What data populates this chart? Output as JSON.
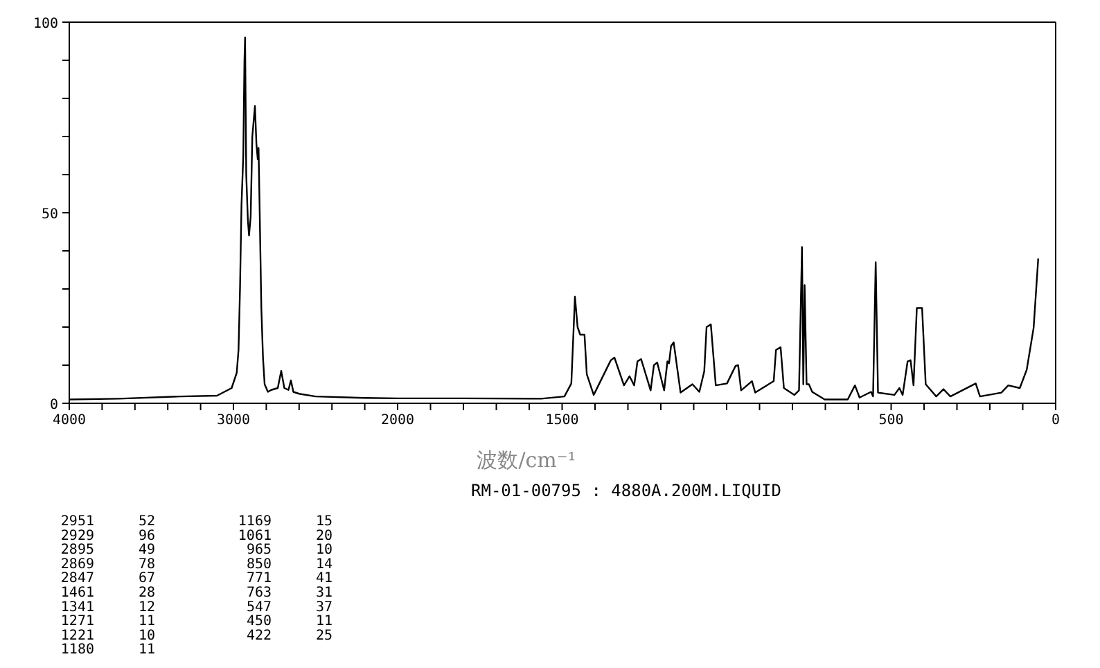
{
  "chart_data": [
    {
      "type": "line",
      "grid": false,
      "marker": "none",
      "line_style": "solid",
      "xlim": [
        4000,
        2000
      ],
      "ylim": [
        0,
        100
      ],
      "xticks": [
        4000,
        {
          "value": 3800,
          "label": null
        },
        {
          "value": 3600,
          "label": null
        },
        {
          "value": 3400,
          "label": null
        },
        {
          "value": 3200,
          "label": null
        },
        3000,
        {
          "value": 2800,
          "label": null
        },
        {
          "value": 2600,
          "label": null
        },
        {
          "value": 2400,
          "label": null
        },
        {
          "value": 2200,
          "label": null
        },
        2000
      ],
      "yticks": [
        0,
        {
          "value": 10,
          "label": null
        },
        {
          "value": 20,
          "label": null
        },
        {
          "value": 30,
          "label": null
        },
        {
          "value": 40,
          "label": null
        },
        50,
        {
          "value": 60,
          "label": null
        },
        {
          "value": 70,
          "label": null
        },
        {
          "value": 80,
          "label": null
        },
        {
          "value": 90,
          "label": null
        },
        100
      ],
      "series": [
        {
          "color": "#000000",
          "x": [
            4000,
            3700,
            3322,
            3100,
            3011,
            2980,
            2969,
            2960,
            2951,
            2940,
            2933,
            2929,
            2922,
            2912,
            2905,
            2895,
            2885,
            2875,
            2869,
            2860,
            2852,
            2847,
            2840,
            2830,
            2820,
            2810,
            2790,
            2770,
            2730,
            2709,
            2690,
            2665,
            2650,
            2635,
            2600,
            2500,
            2200,
            2000
          ],
          "values": [
            1,
            1.2,
            1.8,
            2,
            4,
            8,
            14,
            30,
            52,
            65,
            90,
            96,
            60,
            48,
            44,
            49,
            70,
            75,
            78,
            68,
            64,
            67,
            50,
            25,
            12,
            5,
            3,
            3.5,
            4,
            8.5,
            4,
            3.5,
            6,
            3,
            2.5,
            1.8,
            1.4,
            1.3
          ]
        }
      ],
      "annotations": [
        "2951 52",
        "2929 96",
        "2895 49",
        "2869 78",
        "2847 67",
        "1461 28",
        "1341 12",
        "1271 11",
        "1221 10",
        "1180 11",
        "1169 15",
        "1061 20",
        "965 10",
        "850 14",
        "771 41",
        "763 31",
        "547 37",
        "450 11",
        "422 25"
      ]
    },
    {
      "type": "line",
      "xlabel": "波数/cm⁻¹",
      "grid": false,
      "marker": "none",
      "line_style": "solid",
      "xlim": [
        2000,
        0
      ],
      "ylim": [
        0,
        100
      ],
      "tick_labels": "x",
      "xticks": [
        {
          "value": 2000,
          "label": null
        },
        {
          "value": 1900,
          "label": null
        },
        {
          "value": 1800,
          "label": null
        },
        {
          "value": 1700,
          "label": null
        },
        {
          "value": 1600,
          "label": null
        },
        1500,
        {
          "value": 1400,
          "label": null
        },
        {
          "value": 1300,
          "label": null
        },
        {
          "value": 1200,
          "label": null
        },
        {
          "value": 1100,
          "label": null
        },
        {
          "value": 1000,
          "label": null
        },
        {
          "value": 900,
          "label": null
        },
        {
          "value": 800,
          "label": null
        },
        {
          "value": 700,
          "label": null
        },
        {
          "value": 600,
          "label": null
        },
        500,
        {
          "value": 400,
          "label": null
        },
        {
          "value": 300,
          "label": null
        },
        {
          "value": 200,
          "label": null
        },
        {
          "value": 100,
          "label": null
        },
        0
      ],
      "series": [
        {
          "color": "#000000",
          "x": [
            2000,
            1800,
            1564,
            1493,
            1472,
            1461,
            1453,
            1445,
            1432,
            1425,
            1404,
            1352,
            1341,
            1312,
            1295,
            1281,
            1271,
            1260,
            1231,
            1221,
            1211,
            1190,
            1180,
            1175,
            1169,
            1161,
            1140,
            1104,
            1083,
            1068,
            1061,
            1048,
            1033,
            999,
            973,
            965,
            956,
            923,
            913,
            857,
            850,
            836,
            826,
            794,
            780,
            771,
            767,
            763,
            757,
            750,
            740,
            702,
            632,
            610,
            596,
            561,
            555,
            547,
            540,
            490,
            475,
            465,
            450,
            441,
            432,
            422,
            406,
            395,
            363,
            341,
            320,
            243,
            230,
            165,
            144,
            109,
            88,
            67,
            53
          ],
          "values": [
            1.3,
            1.3,
            1.2,
            1.8,
            5.2,
            28,
            20,
            18,
            18,
            7.6,
            2.2,
            11.3,
            12,
            4.7,
            7.1,
            4.7,
            11,
            11.6,
            3.4,
            10,
            10.7,
            3.4,
            11,
            10.5,
            15,
            16,
            2.8,
            5,
            3,
            8.4,
            20,
            20.7,
            4.7,
            5.2,
            9.8,
            10,
            3.4,
            5.8,
            2.8,
            5.8,
            14,
            14.7,
            4,
            2.2,
            3.4,
            41,
            5,
            31,
            5,
            5,
            3,
            1,
            1,
            4.7,
            1.5,
            3,
            1.8,
            37,
            2.8,
            2.2,
            4,
            2.2,
            11,
            11.3,
            4.7,
            25,
            25,
            5,
            1.8,
            3.7,
            1.8,
            5.2,
            1.8,
            2.8,
            4.7,
            4,
            8.8,
            19.8,
            38
          ]
        }
      ],
      "annotations": [
        "RM-01-00795 : 4880A.200M.LIQUID"
      ]
    }
  ]
}
